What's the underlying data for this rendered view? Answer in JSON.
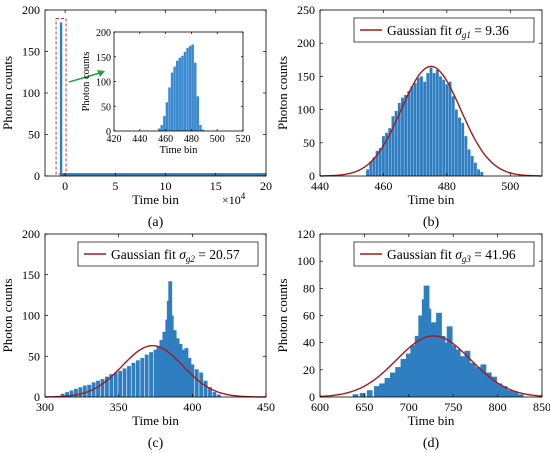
{
  "colors": {
    "bar": "#2e7ec1",
    "fit": "#a31a1a",
    "inset_bar": "#3b8ad0",
    "highlight_box": "#c0392b",
    "arrow": "#1fa34a"
  },
  "chart_data": [
    {
      "id": "a",
      "type": "bar",
      "panel_label": "(a)",
      "xlabel": "Time bin",
      "ylabel": "Photon counts",
      "xlim": [
        -2,
        20
      ],
      "ylim": [
        0,
        200
      ],
      "x_ticks": [
        0,
        5,
        10,
        15,
        20
      ],
      "y_ticks": [
        0,
        50,
        100,
        150,
        200
      ],
      "x_multiplier": "×10",
      "x_multiplier_exp": "4",
      "series": [
        {
          "spike_x": -0.4,
          "spike_value": 185,
          "background_level": 3.5,
          "background_from": -0.4,
          "background_to": 20
        }
      ],
      "inset": {
        "type": "bar",
        "xlabel": "Time bin",
        "ylabel": "Photon counts",
        "xlim": [
          420,
          520
        ],
        "ylim": [
          0,
          200
        ],
        "x_ticks": [
          420,
          440,
          460,
          480,
          500,
          520
        ],
        "y_ticks": [
          0,
          50,
          100,
          150,
          200
        ],
        "x": [
          455,
          457,
          459,
          461,
          463,
          465,
          467,
          469,
          471,
          473,
          475,
          477,
          479,
          481,
          483,
          485,
          487,
          489
        ],
        "values": [
          5,
          12,
          30,
          58,
          88,
          118,
          130,
          142,
          148,
          152,
          160,
          168,
          172,
          175,
          138,
          70,
          12,
          3
        ]
      }
    },
    {
      "id": "b",
      "type": "bar",
      "panel_label": "(b)",
      "xlabel": "Time bin",
      "ylabel": "Photon counts",
      "xlim": [
        440,
        510
      ],
      "ylim": [
        0,
        250
      ],
      "x_ticks": [
        440,
        460,
        480,
        500
      ],
      "y_ticks": [
        0,
        50,
        100,
        150,
        200,
        250
      ],
      "legend": {
        "label": "Gaussian fit",
        "symbol": "σ",
        "subscript": "g1",
        "value": "= 9.36",
        "placement": "top-right"
      },
      "fit": {
        "mean": 475,
        "sigma": 9.36,
        "amplitude": 165
      },
      "x": [
        455,
        456,
        457,
        458,
        459,
        460,
        461,
        462,
        463,
        464,
        465,
        466,
        467,
        468,
        469,
        470,
        471,
        472,
        473,
        474,
        475,
        476,
        477,
        478,
        479,
        480,
        481,
        482,
        483,
        484,
        485,
        486,
        487,
        488,
        489,
        490,
        491
      ],
      "values": [
        10,
        22,
        28,
        38,
        42,
        60,
        65,
        72,
        90,
        98,
        110,
        118,
        122,
        128,
        135,
        140,
        148,
        150,
        142,
        155,
        163,
        155,
        160,
        150,
        145,
        138,
        142,
        120,
        100,
        88,
        80,
        60,
        40,
        30,
        20,
        10,
        6
      ]
    },
    {
      "id": "c",
      "type": "bar",
      "panel_label": "(c)",
      "xlabel": "Time bin",
      "ylabel": "Photon counts",
      "xlim": [
        300,
        450
      ],
      "ylim": [
        0,
        200
      ],
      "x_ticks": [
        300,
        350,
        400,
        450
      ],
      "y_ticks": [
        0,
        50,
        100,
        150,
        200
      ],
      "legend": {
        "label": "Gaussian fit",
        "symbol": "σ",
        "subscript": "g2",
        "value": "= 20.57",
        "placement": "top-right"
      },
      "fit": {
        "mean": 373,
        "sigma": 20.57,
        "amplitude": 63
      },
      "x": [
        312,
        315,
        318,
        321,
        324,
        327,
        330,
        333,
        336,
        339,
        342,
        345,
        348,
        351,
        354,
        357,
        360,
        363,
        366,
        369,
        372,
        375,
        377,
        379,
        381,
        383,
        384,
        385,
        386,
        387,
        388,
        390,
        392,
        394,
        396,
        398,
        400,
        403,
        406,
        409,
        412,
        415,
        418
      ],
      "values": [
        4,
        6,
        8,
        10,
        12,
        14,
        15,
        18,
        20,
        22,
        25,
        28,
        30,
        32,
        35,
        38,
        42,
        45,
        48,
        52,
        55,
        58,
        62,
        70,
        80,
        95,
        118,
        142,
        100,
        75,
        82,
        72,
        65,
        58,
        60,
        48,
        40,
        34,
        30,
        20,
        12,
        6,
        3
      ]
    },
    {
      "id": "d",
      "type": "bar",
      "panel_label": "(d)",
      "xlabel": "Time bin",
      "ylabel": "Photon counts",
      "xlim": [
        600,
        850
      ],
      "ylim": [
        0,
        120
      ],
      "x_ticks": [
        600,
        650,
        700,
        750,
        800,
        850
      ],
      "y_ticks": [
        0,
        20,
        40,
        60,
        80,
        100,
        120
      ],
      "legend": {
        "label": "Gaussian fit",
        "symbol": "σ",
        "subscript": "g3",
        "value": "= 41.96",
        "placement": "top-right"
      },
      "fit": {
        "mean": 728,
        "sigma": 41.96,
        "amplitude": 45
      },
      "x": [
        640,
        648,
        656,
        664,
        670,
        676,
        682,
        688,
        694,
        700,
        705,
        710,
        714,
        718,
        720,
        722,
        725,
        728,
        731,
        734,
        738,
        742,
        746,
        750,
        755,
        760,
        766,
        772,
        778,
        784,
        790,
        796,
        802,
        808,
        814,
        820,
        826
      ],
      "values": [
        2,
        3,
        5,
        8,
        10,
        14,
        18,
        22,
        28,
        32,
        38,
        45,
        60,
        72,
        82,
        65,
        50,
        55,
        48,
        62,
        45,
        40,
        52,
        38,
        35,
        30,
        34,
        25,
        22,
        24,
        18,
        15,
        10,
        8,
        5,
        4,
        2
      ]
    }
  ]
}
